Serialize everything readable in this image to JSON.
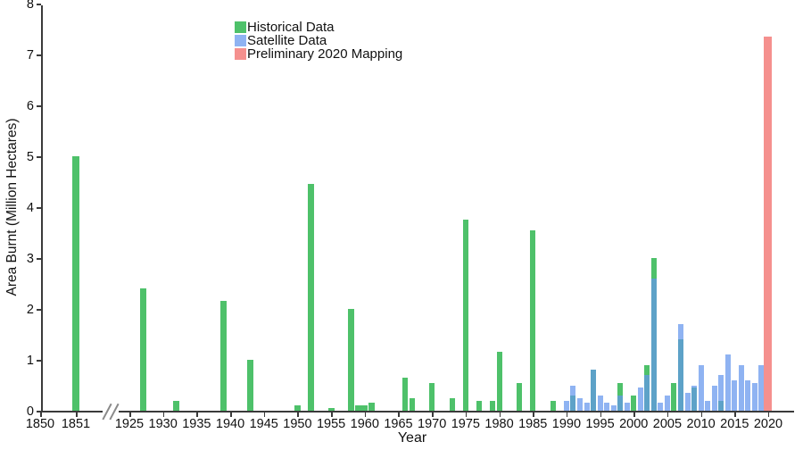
{
  "chart_data": {
    "type": "bar",
    "title": "",
    "xlabel": "Year",
    "ylabel": "Area Burnt (Million Hectares)",
    "ylim": [
      0,
      8
    ],
    "yticks": [
      0,
      1,
      2,
      3,
      4,
      5,
      6,
      7,
      8
    ],
    "xticks": [
      1850,
      1851,
      1925,
      1930,
      1935,
      1940,
      1945,
      1950,
      1955,
      1960,
      1965,
      1970,
      1975,
      1980,
      1985,
      1990,
      1995,
      2000,
      2005,
      2010,
      2015,
      2020
    ],
    "x_axis_break": {
      "between": [
        1851,
        1925
      ]
    },
    "grid": false,
    "legend_position": "top-center",
    "series": [
      {
        "name": "Historical Data",
        "color": "#4ec16a",
        "points": [
          [
            1851,
            5.0
          ],
          [
            1927,
            2.4
          ],
          [
            1932,
            0.2
          ],
          [
            1939,
            2.15
          ],
          [
            1943,
            1.0
          ],
          [
            1950,
            0.1
          ],
          [
            1952,
            4.45
          ],
          [
            1955,
            0.05
          ],
          [
            1958,
            2.0
          ],
          [
            1959,
            0.1
          ],
          [
            1960,
            0.1
          ],
          [
            1961,
            0.15
          ],
          [
            1966,
            0.65
          ],
          [
            1967,
            0.25
          ],
          [
            1970,
            0.55
          ],
          [
            1973,
            0.25
          ],
          [
            1975,
            3.75
          ],
          [
            1977,
            0.2
          ],
          [
            1979,
            0.2
          ],
          [
            1980,
            1.15
          ],
          [
            1983,
            0.55
          ],
          [
            1985,
            3.55
          ],
          [
            1988,
            0.2
          ],
          [
            1991,
            0.3
          ],
          [
            1994,
            0.8
          ],
          [
            1998,
            0.55
          ],
          [
            2000,
            0.3
          ],
          [
            2002,
            0.9
          ],
          [
            2003,
            3.0
          ],
          [
            2006,
            0.55
          ],
          [
            2007,
            1.4
          ],
          [
            2009,
            0.45
          ],
          [
            2013,
            0.2
          ]
        ]
      },
      {
        "name": "Satellite Data",
        "color": "rgba(100,149,237,0.72)",
        "points": [
          [
            1990,
            0.2
          ],
          [
            1991,
            0.5
          ],
          [
            1992,
            0.25
          ],
          [
            1993,
            0.15
          ],
          [
            1994,
            0.8
          ],
          [
            1995,
            0.3
          ],
          [
            1996,
            0.15
          ],
          [
            1997,
            0.1
          ],
          [
            1998,
            0.3
          ],
          [
            1999,
            0.15
          ],
          [
            2001,
            0.45
          ],
          [
            2002,
            0.7
          ],
          [
            2003,
            2.6
          ],
          [
            2004,
            0.15
          ],
          [
            2005,
            0.3
          ],
          [
            2007,
            1.7
          ],
          [
            2008,
            0.35
          ],
          [
            2009,
            0.5
          ],
          [
            2010,
            0.9
          ],
          [
            2011,
            0.2
          ],
          [
            2012,
            0.5
          ],
          [
            2013,
            0.7
          ],
          [
            2014,
            1.1
          ],
          [
            2015,
            0.6
          ],
          [
            2016,
            0.9
          ],
          [
            2017,
            0.6
          ],
          [
            2018,
            0.55
          ],
          [
            2019,
            0.9
          ]
        ]
      },
      {
        "name": "Preliminary 2020 Mapping",
        "color": "#f5908e",
        "points": [
          [
            2020,
            7.35
          ]
        ]
      }
    ]
  }
}
